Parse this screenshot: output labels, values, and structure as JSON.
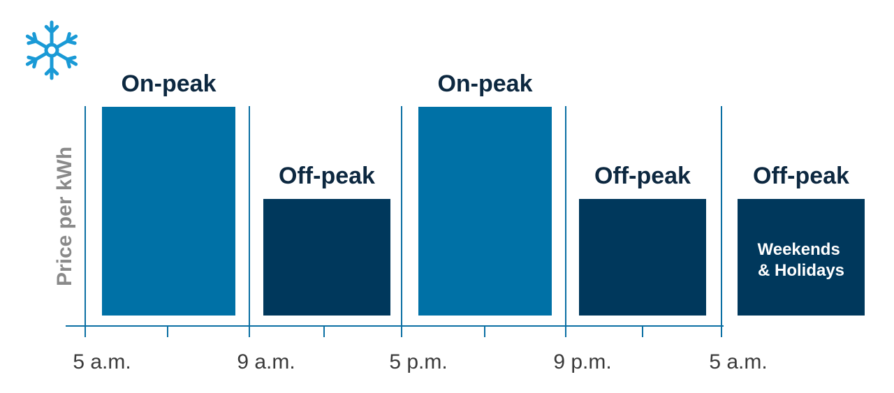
{
  "chart_data": {
    "type": "bar",
    "ylabel": "Price per kWh",
    "x_ticks": [
      "5 a.m.",
      "9 a.m.",
      "5 p.m.",
      "9 p.m.",
      "5 a.m."
    ],
    "bars": [
      {
        "label": "On-peak",
        "level": "high",
        "from": "5 a.m.",
        "to": "9 a.m."
      },
      {
        "label": "Off-peak",
        "level": "low",
        "from": "9 a.m.",
        "to": "5 p.m."
      },
      {
        "label": "On-peak",
        "level": "high",
        "from": "5 p.m.",
        "to": "9 p.m."
      },
      {
        "label": "Off-peak",
        "level": "low",
        "from": "9 p.m.",
        "to": "5 a.m."
      },
      {
        "label": "Off-peak",
        "level": "low",
        "note": "Weekends & Holidays"
      }
    ],
    "note_lines": [
      "Weekends",
      "& Holidays"
    ],
    "colors": {
      "on_peak": "#0071a6",
      "off_peak": "#00385c",
      "axis": "#0a6fa3",
      "label": "#0d2840",
      "tick_text": "#3a3a3a",
      "ylabel_text": "#8a8a8a",
      "icon": "#1a9ad6"
    },
    "icon": "snowflake-icon"
  }
}
